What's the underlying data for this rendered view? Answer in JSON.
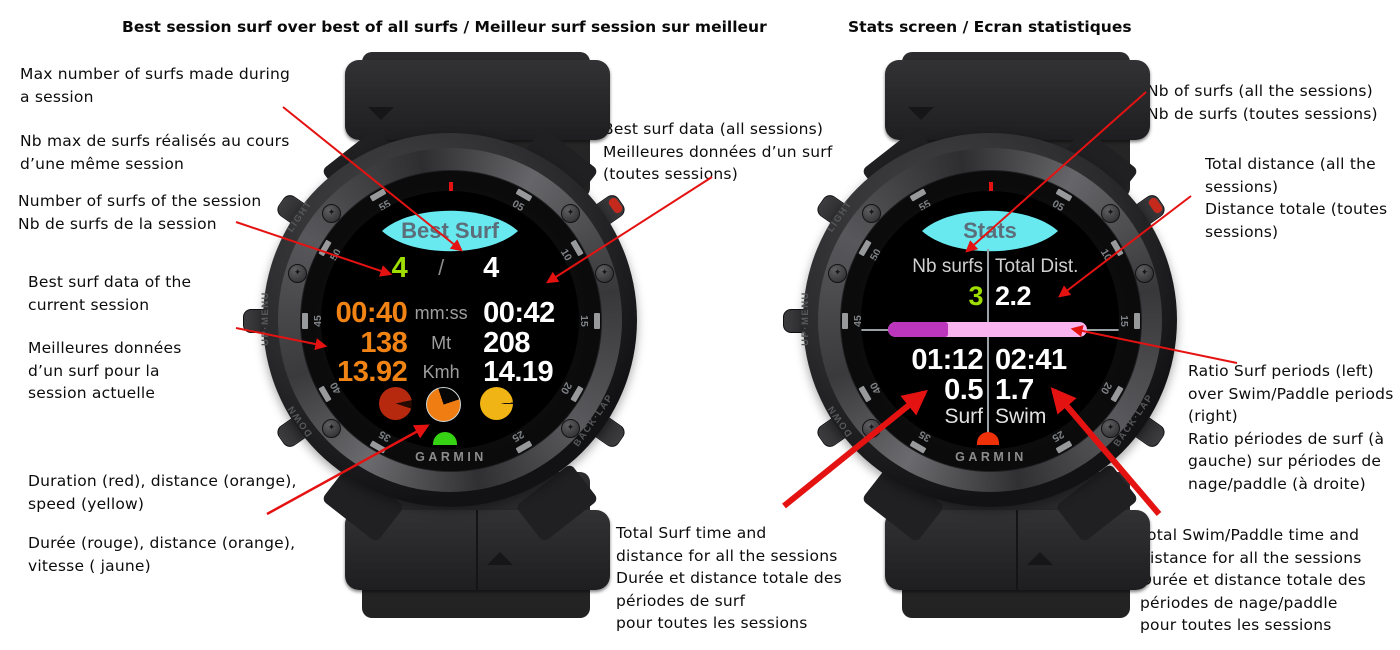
{
  "page": {
    "title_left": "Best session surf over best of all surfs / Meilleur surf session sur meilleur",
    "title_right": "Stats screen / Ecran statistiques"
  },
  "annotations": {
    "max_surfs": "Max number of surfs made during\na session",
    "max_surfs_fr": "Nb max de surfs réalisés au cours\nd’une même session",
    "session_surfs": "Number of surfs of the session\nNb de surfs de la session",
    "best_current": "Best surf data of the\ncurrent session",
    "best_current_fr": "Meilleures données\nd’un surf pour la\nsession actuelle",
    "legend_colors": "Duration (red), distance (orange),\nspeed (yellow)",
    "legend_colors_fr": "Durée (rouge), distance (orange),\nvitesse ( jaune)",
    "best_all": "Best surf data (all sessions)\nMeilleures données d’un surf\n(toutes sessions)",
    "nb_surfs_all": "Nb of surfs (all the sessions)\nNb de surfs (toutes sessions)",
    "total_distance": "Total distance (all the\nsessions)\nDistance totale (toutes\nsessions)",
    "ratio": "Ratio Surf periods (left)\nover Swim/Paddle periods\n(right)\nRatio périodes de surf (à\ngauche) sur périodes de\nnage/paddle (à droite)",
    "total_surf": "Total Surf time and\ndistance for all the sessions\nDurée et distance totale des\npériodes de surf\npour toutes les sessions",
    "total_swim": "Total Swim/Paddle time and\ndistance for all the sessions\nDurée et distance totale des\npériodes de nage/paddle\npour toutes les sessions"
  },
  "watch1": {
    "screen_title": "Best Surf",
    "session_surfs": "4",
    "count_divider": "/",
    "total_surfs": "4",
    "rows": [
      {
        "current": "00:40",
        "unit": "mm:ss",
        "best": "00:42"
      },
      {
        "current": "138",
        "unit": "Mt",
        "best": "208"
      },
      {
        "current": "13.92",
        "unit": "Kmh",
        "best": "14.19"
      }
    ],
    "brand": "GARMIN"
  },
  "watch2": {
    "screen_title": "Stats",
    "col_left_label": "Nb surfs",
    "col_right_label": "Total Dist.",
    "nb_surfs": "3",
    "total_dist": "2.2",
    "surf_time": "01:12",
    "swim_time": "02:41",
    "surf_dist": "0.5",
    "swim_dist": "1.7",
    "surf_label": "Surf",
    "swim_label": "Swim",
    "brand": "GARMIN"
  },
  "bezel": {
    "numbers": [
      "05",
      "10",
      "15",
      "20",
      "25",
      "35",
      "40",
      "45",
      "50",
      "55"
    ],
    "buttons": {
      "light": "LIGHT",
      "up": "UP·MENU",
      "down": "DOWN",
      "back": "BACK·LAP"
    }
  },
  "colors": {
    "eye_cyan": "#68e9f0",
    "screen_title_gray": "#5b6e7a",
    "session_green": "#9fdf00",
    "current_orange": "#f08314",
    "best_white": "#ffffff",
    "unit_gray": "#9e9e9e",
    "pie_red": "#b7290f",
    "pie_orange": "#f07d12",
    "pie_yellow": "#f0b414",
    "dome_green": "#35d313",
    "dome_red": "#f03008",
    "bar_purple": "#bb36bd",
    "bar_pink": "#f9b4ef",
    "arrow_red": "#e51212"
  }
}
